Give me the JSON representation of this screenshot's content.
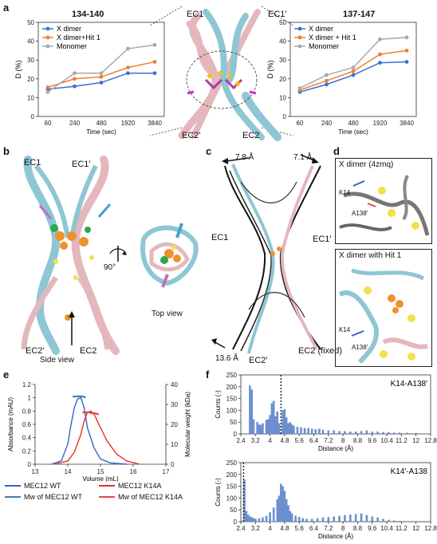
{
  "panel_labels": {
    "a": "a",
    "b": "b",
    "c": "c",
    "d": "d",
    "e": "e",
    "f": "f"
  },
  "colors": {
    "x_dimer": "#3b6fd4",
    "x_dimer_hit1": "#f07f30",
    "monomer": "#a8a8a8",
    "mec12_wt": "#2f64c8",
    "mec12_k14a": "#e8312a",
    "mw_wt": "#3a7fb2",
    "mw_k14a": "#e04b3a",
    "cyan_chain": "#8ec6d4",
    "pink_chain": "#e4b7bd",
    "hist_bar": "#6b8fd0"
  },
  "panel_a": {
    "left_title": "134-140",
    "right_title": "137-147",
    "molecule_labels": {
      "ec1": "EC1",
      "ec1p": "EC1′",
      "ec2p": "EC2′",
      "ec2": "EC2"
    }
  },
  "panel_b": {
    "ec1": "EC1",
    "ec1p": "EC1′",
    "ec2p": "EC2′",
    "ec2": "EC2",
    "rotation": "90°",
    "side_view": "Side view",
    "top_view": "Top view"
  },
  "panel_c": {
    "shift1": "7.8 Å",
    "shift2": "7.1 Å",
    "shift3": "13.6 Å",
    "ec1": "EC1",
    "ec1p": "EC1′",
    "ec2p": "EC2′",
    "ec2_fixed": "EC2 (fixed)"
  },
  "panel_d": {
    "top_title": "X dimer (4zmq)",
    "bottom_title": "X dimer with Hit 1",
    "k14": "K14",
    "a138p": "A138′"
  },
  "chart_data": [
    {
      "type": "line",
      "title": "134-140",
      "xlabel": "Time (sec)",
      "ylabel": "D (%)",
      "categories": [
        "60",
        "240",
        "480",
        "1920",
        "3840"
      ],
      "ylim": [
        0,
        50
      ],
      "yticks": [
        "0",
        "10",
        "20",
        "30",
        "40",
        "50"
      ],
      "legend_position": "top-left",
      "series": [
        {
          "name": "X dimer",
          "values": [
            14.5,
            16,
            18,
            23,
            23
          ]
        },
        {
          "name": "X dimer+Hit 1",
          "values": [
            15.5,
            20,
            21,
            26,
            29
          ]
        },
        {
          "name": "Monomer",
          "values": [
            13,
            23,
            23,
            36,
            38
          ]
        }
      ]
    },
    {
      "type": "line",
      "title": "137-147",
      "xlabel": "Time (sec)",
      "ylabel": "D (%)",
      "categories": [
        "60",
        "240",
        "480",
        "1920",
        "3840"
      ],
      "ylim": [
        0,
        50
      ],
      "yticks": [
        "0",
        "10",
        "20",
        "30",
        "40",
        "50"
      ],
      "legend_position": "top-left",
      "series": [
        {
          "name": "X dimer",
          "values": [
            13,
            17,
            22,
            28.5,
            29
          ]
        },
        {
          "name": "X dimer + Hit 1",
          "values": [
            14,
            19,
            24,
            33,
            35
          ]
        },
        {
          "name": "Monomer",
          "values": [
            15,
            22,
            26,
            41,
            42
          ]
        }
      ]
    },
    {
      "type": "line",
      "xlabel": "Volume (mL)",
      "ylabel": "Absorbance (mAU)",
      "y2label": "Molecular weight (kDa)",
      "xlim": [
        13,
        17
      ],
      "xticks": [
        "13",
        "14",
        "15",
        "16",
        "17"
      ],
      "ylim": [
        0,
        1.2
      ],
      "yticks": [
        "0",
        "0.2",
        "0.4",
        "0.6",
        "0.8",
        "1",
        "1.2"
      ],
      "y2lim": [
        0,
        40
      ],
      "y2ticks": [
        "0",
        "10",
        "20",
        "30",
        "40"
      ],
      "legend_position": "bottom",
      "series": [
        {
          "name": "MEC12 WT",
          "x": [
            13.5,
            13.8,
            14.0,
            14.1,
            14.2,
            14.3,
            14.4,
            14.5,
            14.6,
            14.8,
            15.0,
            15.3,
            15.8
          ],
          "y": [
            0,
            0.05,
            0.3,
            0.6,
            0.85,
            0.98,
            1.0,
            0.85,
            0.55,
            0.25,
            0.08,
            0.02,
            0
          ]
        },
        {
          "name": "MEC12 K14A",
          "x": [
            13.6,
            14.0,
            14.2,
            14.4,
            14.5,
            14.6,
            14.7,
            14.8,
            15.0,
            15.2,
            15.5,
            15.8,
            16.2
          ],
          "y": [
            0,
            0.05,
            0.18,
            0.45,
            0.65,
            0.78,
            0.8,
            0.76,
            0.55,
            0.35,
            0.15,
            0.05,
            0
          ]
        },
        {
          "name": "Mw of MEC12 WT",
          "x": [
            14.15,
            14.25,
            14.35,
            14.45,
            14.55
          ],
          "y": [
            34,
            34,
            34,
            34,
            33.5
          ]
        },
        {
          "name": "Mw of MEC12 K14A",
          "x": [
            14.45,
            14.55,
            14.65,
            14.75,
            14.85,
            14.95
          ],
          "y": [
            26,
            26,
            26,
            25.5,
            25.5,
            25
          ]
        }
      ]
    },
    {
      "type": "bar",
      "annotation": "K14-A138′",
      "xlabel": "Distance (Å)",
      "ylabel": "Counts (-)",
      "xlim": [
        2.4,
        12.8
      ],
      "xticks": [
        "2.4",
        "3.2",
        "4",
        "4.8",
        "5.6",
        "6.4",
        "7.2",
        "8",
        "8.8",
        "9.6",
        "10.4",
        "11.2",
        "12",
        "12.8"
      ],
      "ylim": [
        0,
        250
      ],
      "yticks": [
        "0",
        "50",
        "100",
        "150",
        "200",
        "250"
      ],
      "dashed_line_x": 4.6,
      "bins_x": [
        2.9,
        3.0,
        3.1,
        3.3,
        3.4,
        3.5,
        3.6,
        3.8,
        3.9,
        4.0,
        4.1,
        4.2,
        4.3,
        4.4,
        4.5,
        4.7,
        4.8,
        4.9,
        5.0,
        5.1,
        5.2,
        5.3,
        5.5,
        5.7,
        5.9,
        6.1,
        6.3,
        6.5,
        6.7,
        6.9,
        7.2,
        7.5,
        7.8,
        8.1,
        8.4,
        8.7,
        9.0,
        9.3,
        9.6,
        9.9,
        10.2,
        10.5,
        10.8,
        11.1,
        11.5,
        12.0
      ],
      "values": [
        205,
        188,
        62,
        50,
        40,
        38,
        45,
        60,
        62,
        80,
        130,
        140,
        75,
        95,
        45,
        100,
        105,
        70,
        45,
        50,
        40,
        35,
        30,
        28,
        25,
        25,
        22,
        20,
        22,
        18,
        15,
        15,
        12,
        12,
        10,
        10,
        12,
        15,
        10,
        10,
        8,
        8,
        6,
        6,
        5,
        4
      ]
    },
    {
      "type": "bar",
      "annotation": "K14′-A138",
      "xlabel": "Distance (Å)",
      "ylabel": "Counts (-)",
      "xlim": [
        2.4,
        12.8
      ],
      "xticks": [
        "2.4",
        "3.2",
        "4",
        "4.8",
        "5.6",
        "6.4",
        "7.2",
        "8",
        "8.8",
        "9.6",
        "10.4",
        "11.2",
        "12",
        "12.8"
      ],
      "ylim": [
        0,
        250
      ],
      "yticks": [
        "0",
        "50",
        "100",
        "150",
        "200",
        "250"
      ],
      "dashed_line_x": 2.55,
      "bins_x": [
        2.6,
        2.7,
        2.8,
        2.9,
        3.0,
        3.1,
        3.2,
        3.4,
        3.6,
        3.8,
        4.0,
        4.2,
        4.4,
        4.5,
        4.6,
        4.7,
        4.8,
        4.9,
        5.0,
        5.1,
        5.2,
        5.4,
        5.6,
        5.8,
        6.0,
        6.3,
        6.6,
        6.9,
        7.2,
        7.5,
        7.8,
        8.1,
        8.4,
        8.7,
        9.0,
        9.3,
        9.6,
        9.9,
        10.2,
        10.5,
        10.8,
        11.1
      ],
      "values": [
        178,
        45,
        30,
        22,
        18,
        15,
        12,
        14,
        18,
        25,
        40,
        60,
        95,
        110,
        160,
        150,
        130,
        95,
        70,
        45,
        35,
        25,
        20,
        15,
        12,
        12,
        15,
        18,
        20,
        22,
        25,
        28,
        30,
        32,
        35,
        28,
        22,
        18,
        12,
        8,
        5,
        3
      ]
    }
  ]
}
